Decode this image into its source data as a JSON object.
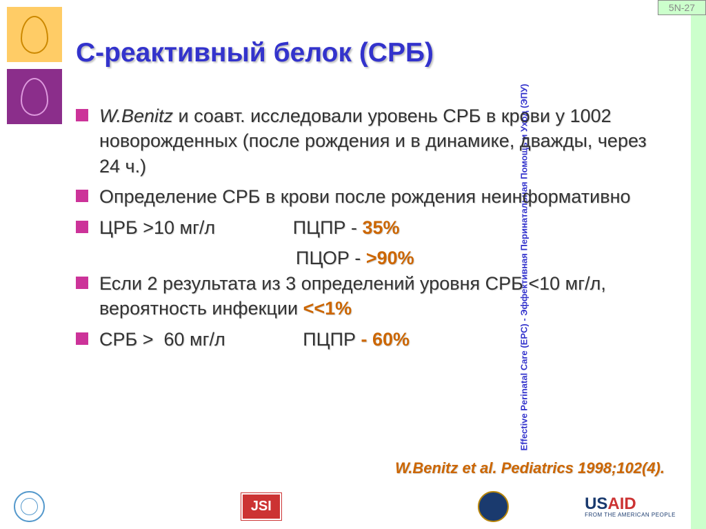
{
  "slide_number": "5N-27",
  "vertical_label": "Effective Perinatal Care (EPC) - Эффективная Перинатальная Помощь и Уход (ЭПУ)",
  "title": "С-реактивный белок (СРБ)",
  "bullets": {
    "b1_author": "W.Benitz",
    "b1_rest": " и соавт. исследовали уровень СРБ в крови у 1002 новорожденных (после рождения и в динамике, дважды, через 24 ч.)",
    "b2": "Определение СРБ в крови после рождения неинформативно",
    "b3_pre": "ЦРБ >10 мг/л               ПЦПР ",
    "b3_dash": "- ",
    "b3_val": "35%",
    "b3_sub_pre": "                                      ПЦОР ",
    "b3_sub_dash": "- ",
    "b3_sub_val": ">90%",
    "b4_pre": "Если 2 результата из 3 определений уровня СРБ <10 мг/л, вероятность инфекции ",
    "b4_val": "<<1%",
    "b5_pre": "СРБ >  60 мг/л               ПЦПР ",
    "b5_val": "- 60%"
  },
  "citation": "W.Benitz et al. Pediatrics 1998;102(4).",
  "logos": {
    "jsi": "JSI",
    "usaid_main1": "US",
    "usaid_main2": "AID",
    "usaid_tag": "FROM THE AMERICAN PEOPLE"
  },
  "colors": {
    "title": "#3333cc",
    "bullet": "#cc3399",
    "highlight": "#cc6600",
    "strip_bg": "#ccffcc"
  }
}
